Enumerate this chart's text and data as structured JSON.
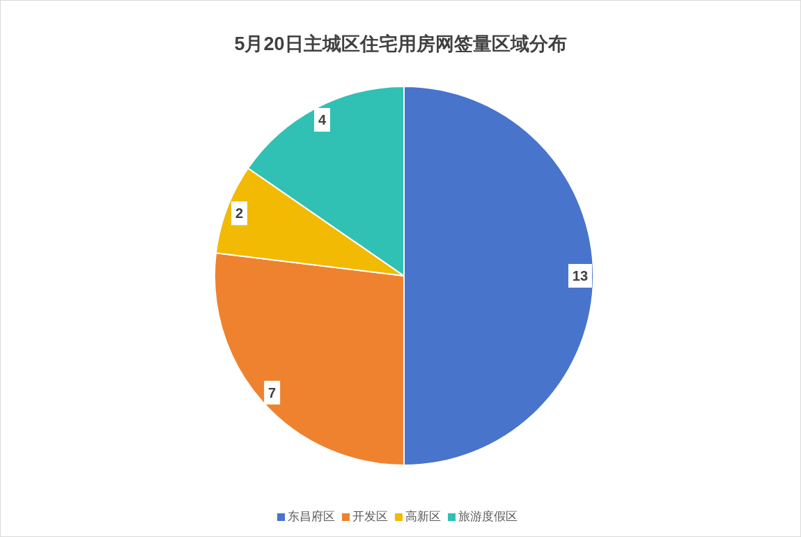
{
  "chart_data": {
    "type": "pie",
    "title": "5月20日主城区住宅用房网签量区域分布",
    "categories": [
      "东昌府区",
      "开发区",
      "高新区",
      "旅游度假区"
    ],
    "values": [
      13,
      7,
      2,
      4
    ],
    "colors": [
      "#4874cb",
      "#ee822f",
      "#f2ba02",
      "#30c0b4"
    ],
    "data_labels": true,
    "legend": "bottom"
  }
}
